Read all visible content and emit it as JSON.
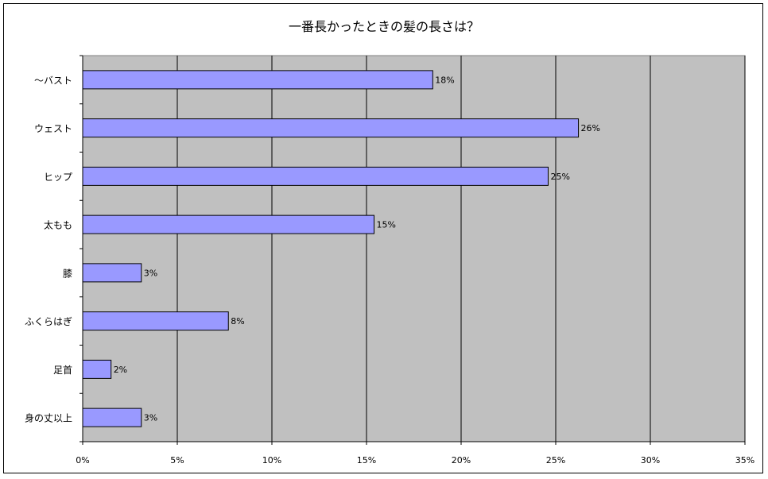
{
  "chart_data": {
    "type": "bar",
    "orientation": "horizontal",
    "title": "一番長かったときの髪の長さは？",
    "categories": [
      "〜バスト",
      "ウェスト",
      "ヒップ",
      "太もも",
      "膝",
      "ふくらはぎ",
      "足首",
      "身の丈以上"
    ],
    "values": [
      18.5,
      26.2,
      24.6,
      15.4,
      3.1,
      7.7,
      1.5,
      3.1
    ],
    "data_labels": [
      "18%",
      "26%",
      "25%",
      "15%",
      "3%",
      "8%",
      "2%",
      "3%"
    ],
    "x_ticks": [
      "0%",
      "5%",
      "10%",
      "15%",
      "20%",
      "25%",
      "30%",
      "35%"
    ],
    "xlim": [
      0,
      35
    ],
    "grid": true,
    "colors": {
      "bar": "#9999ff",
      "plot_bg": "#c0c0c0",
      "grid": "#000000"
    }
  }
}
